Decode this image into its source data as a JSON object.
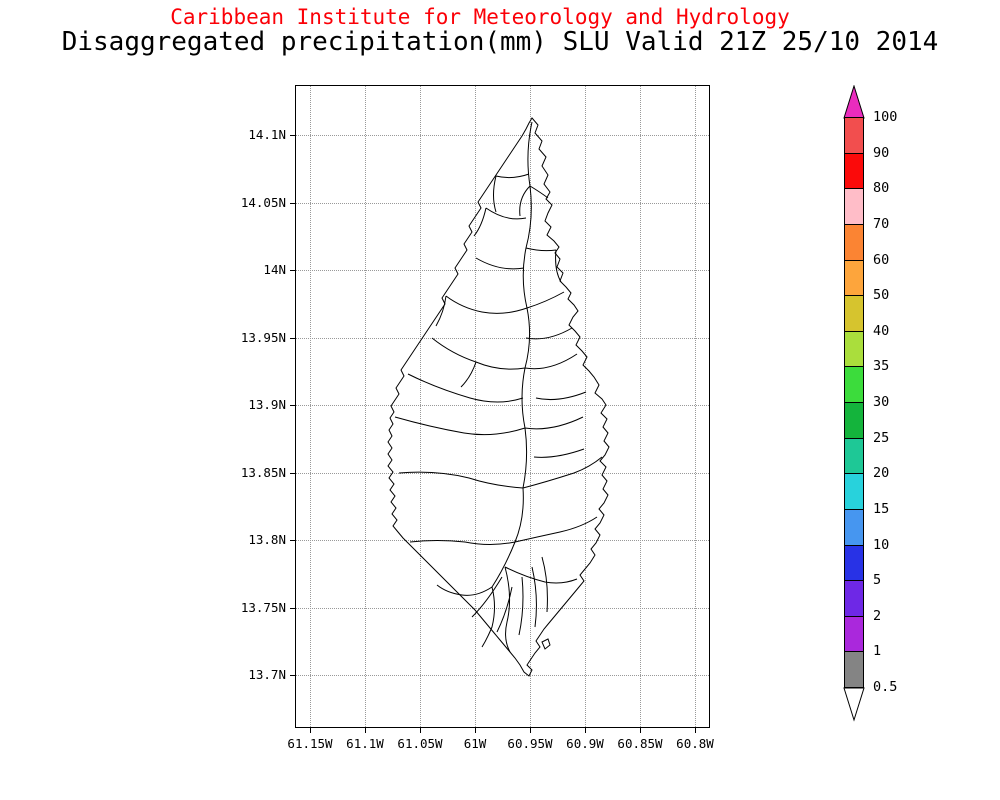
{
  "header": {
    "title": "Caribbean Institute for Meteorology and Hydrology",
    "subtitle": "Disaggregated precipitation(mm) SLU Valid 21Z 25/10 2014",
    "title_color": "#fb0007",
    "subtitle_color": "#000000"
  },
  "map": {
    "y_axis_labels": [
      "14.1N",
      "14.05N",
      "14N",
      "13.95N",
      "13.9N",
      "13.85N",
      "13.8N",
      "13.75N",
      "13.7N"
    ],
    "x_axis_labels": [
      "61.15W",
      "61.1W",
      "61.05W",
      "61W",
      "60.95W",
      "60.9W",
      "60.85W",
      "60.8W"
    ],
    "grid": "dotted",
    "outline_color": "#000000"
  },
  "colorbar": {
    "labels": [
      "100",
      "90",
      "80",
      "70",
      "60",
      "50",
      "40",
      "35",
      "30",
      "25",
      "20",
      "15",
      "10",
      "5",
      "2",
      "1",
      "0.5"
    ],
    "arrow_top_color": "#ea2cbe",
    "arrow_bottom_color": "#ffffff",
    "segment_colors": [
      "#f24e4e",
      "#fb0a0a",
      "#ffbdc8",
      "#fb8433",
      "#fda53c",
      "#d6c42e",
      "#aade3c",
      "#3cdc3c",
      "#14b43c",
      "#1ec896",
      "#28d2dc",
      "#4696f0",
      "#2832e6",
      "#6e28e6",
      "#aa28dc",
      "#848484"
    ]
  }
}
